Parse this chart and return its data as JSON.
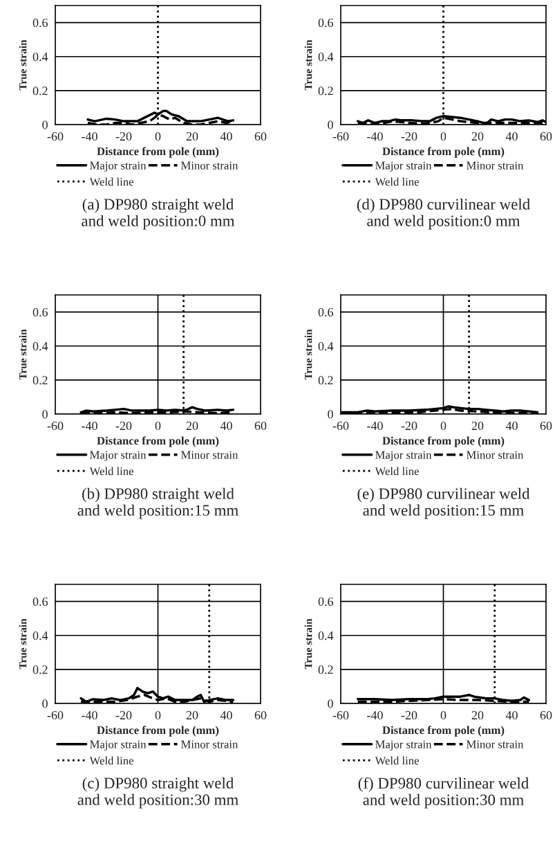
{
  "chart_data": [
    {
      "type": "line",
      "xlabel": "Distance from pole (mm)",
      "ylabel": "True strain",
      "xlim": [
        -60,
        60
      ],
      "xticks": [
        -60,
        -40,
        -20,
        0,
        20,
        40,
        60
      ],
      "ylim": [
        0,
        0.7
      ],
      "yticks": [
        0,
        0.2,
        0.4,
        0.6
      ],
      "grid": "y",
      "legend": "bottom",
      "annotations": [
        "(a) DP980 straight weld\nand weld position:0 mm"
      ],
      "ref_lines": [
        {
          "axis": "x",
          "value": 0,
          "label": "Weld line",
          "color": "#000000",
          "line_style": "dotted"
        }
      ],
      "series": [
        {
          "name": "Major strain",
          "color": "#000000",
          "line_style": "solid",
          "x": [
            -41,
            -37,
            -30,
            -25,
            -20,
            -12,
            -8,
            -4,
            -2,
            0,
            3,
            5,
            8,
            12,
            17,
            20,
            25,
            30,
            35,
            38,
            41,
            44
          ],
          "values": [
            0.03,
            0.02,
            0.035,
            0.03,
            0.02,
            0.02,
            0.04,
            0.06,
            0.07,
            0.06,
            0.08,
            0.08,
            0.06,
            0.05,
            0.02,
            0.02,
            0.02,
            0.03,
            0.04,
            0.03,
            0.02,
            0.025
          ]
        },
        {
          "name": "Minor strain",
          "color": "#000000",
          "line_style": "dashed",
          "x": [
            -41,
            -35,
            -30,
            -25,
            -20,
            -15,
            -10,
            -5,
            -2,
            0,
            3,
            7,
            10,
            15,
            20,
            25,
            30,
            35,
            40,
            44
          ],
          "values": [
            0.01,
            0.0,
            0.0,
            0.01,
            0.01,
            0.0,
            0.01,
            0.02,
            0.04,
            0.06,
            0.05,
            0.03,
            0.04,
            0.01,
            0.0,
            0.0,
            0.01,
            0.02,
            0.01,
            0.02
          ]
        }
      ]
    },
    {
      "type": "line",
      "xlabel": "Distance from pole (mm)",
      "ylabel": "True strain",
      "xlim": [
        -60,
        60
      ],
      "xticks": [
        -60,
        -40,
        -20,
        0,
        20,
        40,
        60
      ],
      "ylim": [
        0,
        0.7
      ],
      "yticks": [
        0,
        0.2,
        0.4,
        0.6
      ],
      "grid": "y",
      "legend": "bottom",
      "annotations": [
        "(d) DP980 curvilinear weld\nand weld position:0 mm"
      ],
      "ref_lines": [
        {
          "axis": "x",
          "value": 0,
          "label": "Weld line",
          "color": "#000000",
          "line_style": "dotted"
        }
      ],
      "series": [
        {
          "name": "Major strain",
          "color": "#000000",
          "line_style": "solid",
          "x": [
            -50,
            -47,
            -44,
            -40,
            -36,
            -32,
            -28,
            -24,
            -18,
            -12,
            -8,
            -4,
            0,
            5,
            10,
            15,
            20,
            25,
            28,
            32,
            36,
            40,
            45,
            50,
            55,
            58,
            60
          ],
          "values": [
            0.02,
            0.01,
            0.025,
            0.01,
            0.02,
            0.02,
            0.03,
            0.025,
            0.025,
            0.02,
            0.02,
            0.04,
            0.05,
            0.045,
            0.04,
            0.03,
            0.02,
            0.005,
            0.03,
            0.02,
            0.03,
            0.03,
            0.02,
            0.025,
            0.015,
            0.025,
            0.015
          ]
        },
        {
          "name": "Minor strain",
          "color": "#000000",
          "line_style": "dashed",
          "x": [
            -50,
            -40,
            -30,
            -20,
            -10,
            -3,
            0,
            5,
            10,
            20,
            30,
            40,
            50,
            60
          ],
          "values": [
            0.01,
            0.0,
            0.02,
            0.01,
            0.005,
            0.02,
            0.04,
            0.03,
            0.02,
            0.01,
            0.01,
            0.01,
            0.01,
            0.01
          ]
        }
      ]
    },
    {
      "type": "line",
      "xlabel": "Distance from pole (mm)",
      "ylabel": "True strain",
      "xlim": [
        -60,
        60
      ],
      "xticks": [
        -60,
        -40,
        -20,
        0,
        20,
        40,
        60
      ],
      "ylim": [
        0,
        0.7
      ],
      "yticks": [
        0,
        0.2,
        0.4,
        0.6
      ],
      "grid": "y",
      "legend": "bottom",
      "annotations": [
        "(b) DP980 straight weld\nand weld position:15 mm"
      ],
      "ref_lines": [
        {
          "axis": "x",
          "value": 0,
          "color": "#000000",
          "line_style": "solid"
        },
        {
          "axis": "x",
          "value": 15,
          "label": "Weld line",
          "color": "#000000",
          "line_style": "dotted"
        }
      ],
      "series": [
        {
          "name": "Major strain",
          "color": "#000000",
          "line_style": "solid",
          "x": [
            -45,
            -42,
            -38,
            -30,
            -25,
            -20,
            -15,
            -10,
            -5,
            0,
            5,
            10,
            15,
            18,
            20,
            23,
            28,
            35,
            40,
            44
          ],
          "values": [
            0.01,
            0.02,
            0.015,
            0.02,
            0.025,
            0.03,
            0.02,
            0.02,
            0.02,
            0.025,
            0.02,
            0.025,
            0.02,
            0.03,
            0.04,
            0.03,
            0.02,
            0.025,
            0.02,
            0.025
          ]
        },
        {
          "name": "Minor strain",
          "color": "#000000",
          "line_style": "dashed",
          "x": [
            -45,
            -35,
            -25,
            -15,
            -5,
            5,
            15,
            25,
            35,
            44
          ],
          "values": [
            0.01,
            0.005,
            0.01,
            0.005,
            0.01,
            0.01,
            0.015,
            0.01,
            0.005,
            0.01
          ]
        }
      ]
    },
    {
      "type": "line",
      "xlabel": "Distance from pole (mm)",
      "ylabel": "True strain",
      "xlim": [
        -60,
        60
      ],
      "xticks": [
        -60,
        -40,
        -20,
        0,
        20,
        40,
        60
      ],
      "ylim": [
        0,
        0.7
      ],
      "yticks": [
        0,
        0.2,
        0.4,
        0.6
      ],
      "grid": "y",
      "legend": "bottom",
      "annotations": [
        "(e) DP980 curvilinear weld\nand weld position:15 mm"
      ],
      "ref_lines": [
        {
          "axis": "x",
          "value": 0,
          "color": "#000000",
          "line_style": "solid"
        },
        {
          "axis": "x",
          "value": 15,
          "label": "Weld line",
          "color": "#000000",
          "line_style": "dotted"
        }
      ],
      "series": [
        {
          "name": "Major strain",
          "color": "#000000",
          "line_style": "solid",
          "x": [
            -60,
            -50,
            -45,
            -40,
            -30,
            -20,
            -10,
            -5,
            0,
            3,
            6,
            10,
            15,
            20,
            25,
            30,
            35,
            40,
            45,
            50,
            55
          ],
          "values": [
            0.01,
            0.01,
            0.02,
            0.015,
            0.02,
            0.02,
            0.025,
            0.03,
            0.035,
            0.045,
            0.04,
            0.035,
            0.03,
            0.03,
            0.025,
            0.02,
            0.015,
            0.02,
            0.02,
            0.015,
            0.01
          ]
        },
        {
          "name": "Minor strain",
          "color": "#000000",
          "line_style": "dashed",
          "x": [
            -60,
            -45,
            -30,
            -15,
            -5,
            0,
            5,
            10,
            20,
            30,
            40,
            55
          ],
          "values": [
            0.005,
            0.01,
            0.01,
            0.01,
            0.02,
            0.025,
            0.03,
            0.02,
            0.015,
            0.01,
            0.005,
            0.005
          ]
        }
      ]
    },
    {
      "type": "line",
      "xlabel": "Distance from pole (mm)",
      "ylabel": "True strain",
      "xlim": [
        -60,
        60
      ],
      "xticks": [
        -60,
        -40,
        -20,
        0,
        20,
        40,
        60
      ],
      "ylim": [
        0,
        0.7
      ],
      "yticks": [
        0,
        0.2,
        0.4,
        0.6
      ],
      "grid": "y",
      "legend": "bottom",
      "annotations": [
        "(c) DP980 straight weld\nand weld position:30 mm"
      ],
      "ref_lines": [
        {
          "axis": "x",
          "value": 0,
          "color": "#000000",
          "line_style": "solid"
        },
        {
          "axis": "x",
          "value": 30,
          "label": "Weld line",
          "color": "#000000",
          "line_style": "dotted"
        }
      ],
      "series": [
        {
          "name": "Major strain",
          "color": "#000000",
          "line_style": "solid",
          "x": [
            -45,
            -42,
            -38,
            -32,
            -27,
            -22,
            -17,
            -14,
            -12,
            -9,
            -6,
            -3,
            0,
            3,
            6,
            10,
            15,
            20,
            23,
            25,
            27,
            30,
            35,
            40,
            44
          ],
          "values": [
            0.03,
            0.01,
            0.025,
            0.02,
            0.03,
            0.02,
            0.03,
            0.05,
            0.09,
            0.07,
            0.06,
            0.07,
            0.04,
            0.03,
            0.04,
            0.02,
            0.02,
            0.02,
            0.04,
            0.05,
            0.01,
            0.02,
            0.03,
            0.02,
            0.02
          ]
        },
        {
          "name": "Minor strain",
          "color": "#000000",
          "line_style": "dashed",
          "x": [
            -45,
            -35,
            -25,
            -18,
            -12,
            -8,
            -3,
            0,
            5,
            10,
            15,
            20,
            25,
            30,
            35,
            44
          ],
          "values": [
            0.01,
            0.01,
            0.01,
            0.02,
            0.04,
            0.05,
            0.03,
            0.02,
            0.03,
            0.01,
            0.01,
            0.02,
            0.03,
            0.01,
            0.02,
            0.01
          ]
        }
      ]
    },
    {
      "type": "line",
      "xlabel": "Distance from pole (mm)",
      "ylabel": "True strain",
      "xlim": [
        -60,
        60
      ],
      "xticks": [
        -60,
        -40,
        -20,
        0,
        20,
        40,
        60
      ],
      "ylim": [
        0,
        0.7
      ],
      "yticks": [
        0,
        0.2,
        0.4,
        0.6
      ],
      "grid": "y",
      "legend": "bottom",
      "annotations": [
        "(f) DP980 curvilinear weld\nand weld position:30 mm"
      ],
      "ref_lines": [
        {
          "axis": "x",
          "value": 0,
          "color": "#000000",
          "line_style": "solid"
        },
        {
          "axis": "x",
          "value": 30,
          "label": "Weld line",
          "color": "#000000",
          "line_style": "dotted"
        }
      ],
      "series": [
        {
          "name": "Major strain",
          "color": "#000000",
          "line_style": "solid",
          "x": [
            -50,
            -40,
            -30,
            -20,
            -10,
            -5,
            0,
            5,
            10,
            15,
            18,
            25,
            30,
            35,
            40,
            45,
            47,
            50
          ],
          "values": [
            0.025,
            0.025,
            0.02,
            0.025,
            0.025,
            0.03,
            0.04,
            0.04,
            0.04,
            0.05,
            0.04,
            0.03,
            0.03,
            0.02,
            0.015,
            0.02,
            0.035,
            0.02
          ]
        },
        {
          "name": "Minor strain",
          "color": "#000000",
          "line_style": "dashed",
          "x": [
            -50,
            -40,
            -30,
            -20,
            -10,
            0,
            10,
            20,
            30,
            40,
            50
          ],
          "values": [
            0.01,
            0.01,
            0.01,
            0.015,
            0.02,
            0.025,
            0.02,
            0.02,
            0.015,
            0.01,
            0.01
          ]
        }
      ]
    }
  ]
}
